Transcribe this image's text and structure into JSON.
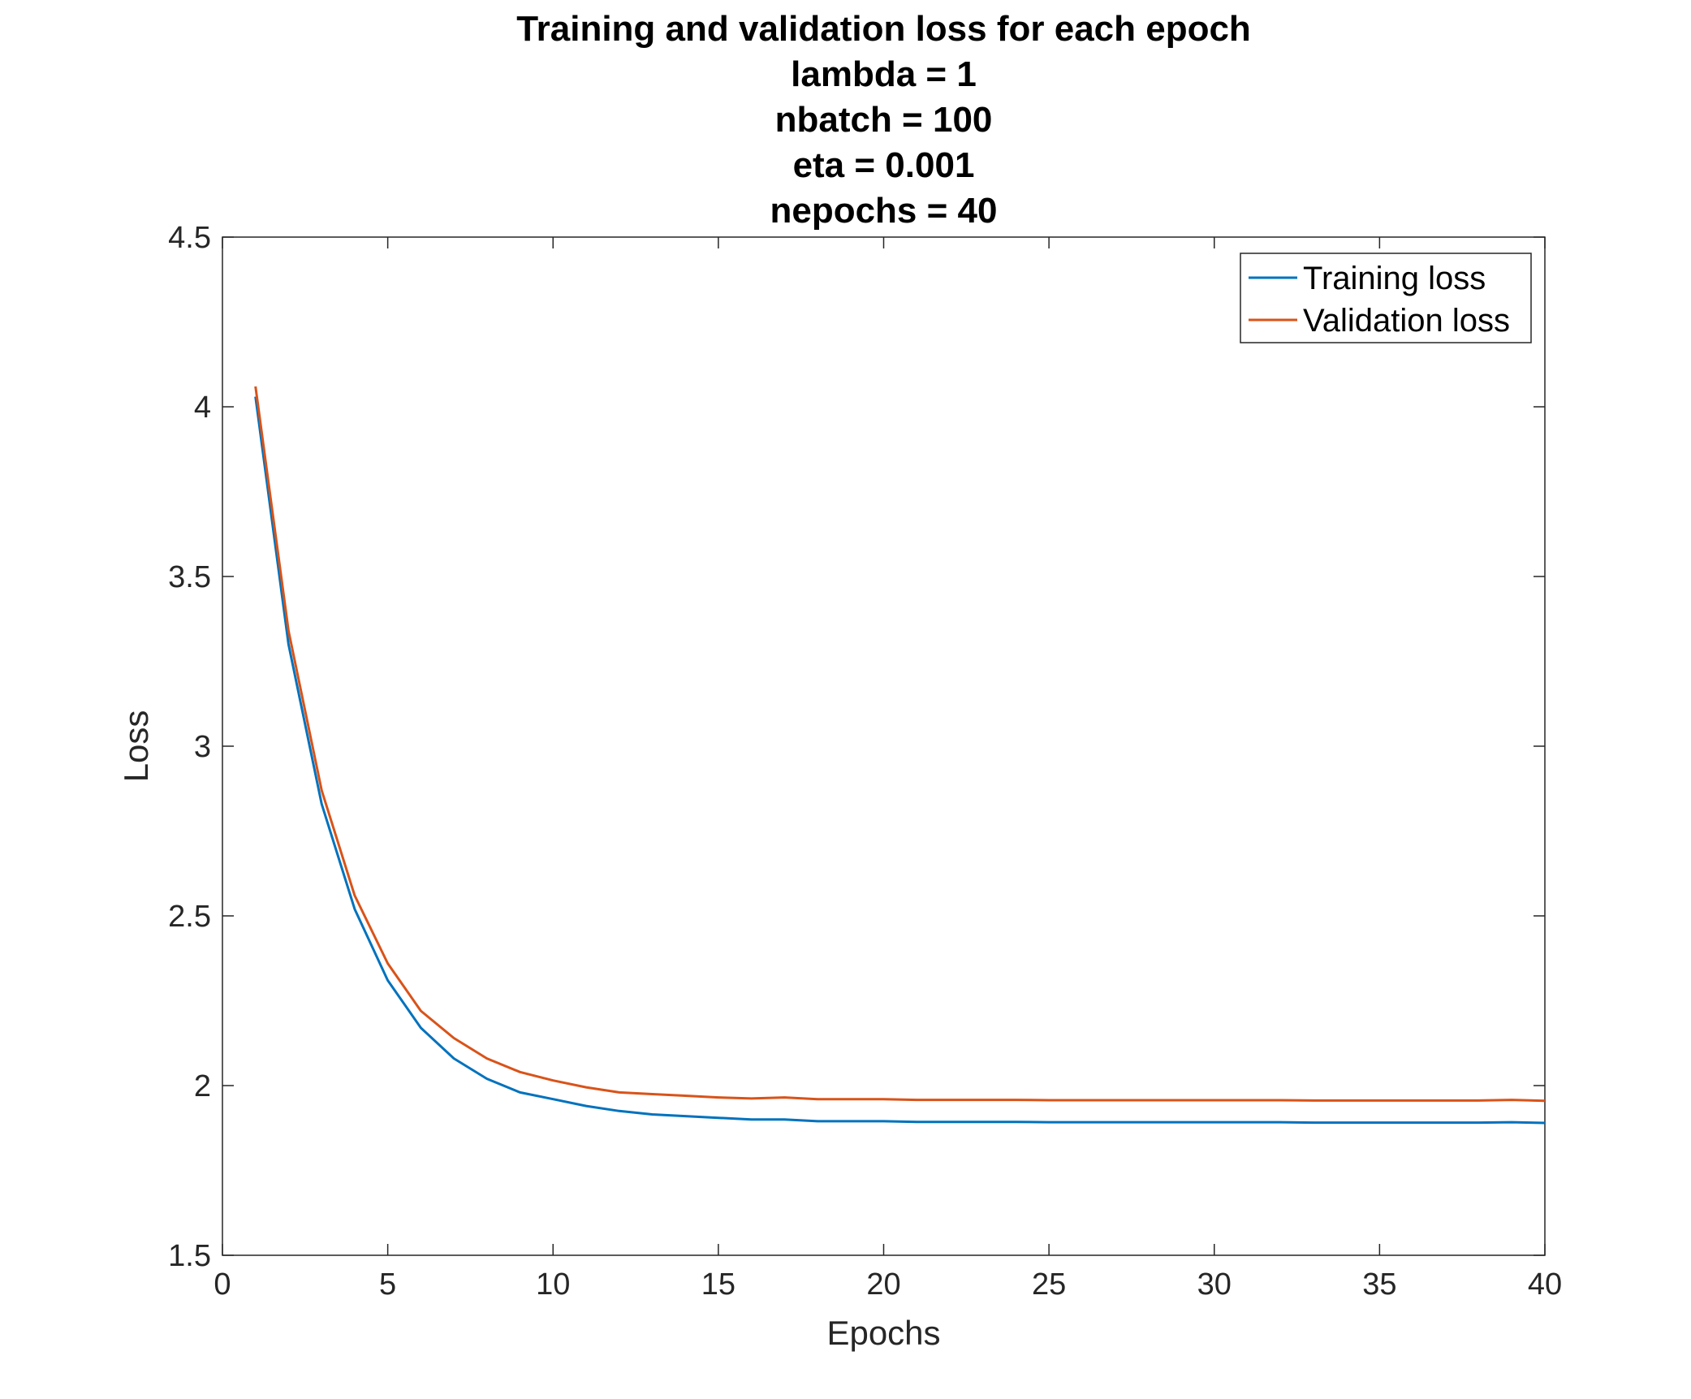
{
  "chart_data": {
    "type": "line",
    "title_lines": [
      "Training and validation loss for each epoch",
      "lambda = 1",
      "nbatch = 100",
      "eta = 0.001",
      "nepochs = 40"
    ],
    "xlabel": "Epochs",
    "ylabel": "Loss",
    "xlim": [
      0,
      40
    ],
    "ylim": [
      1.5,
      4.5
    ],
    "xticks": [
      0,
      5,
      10,
      15,
      20,
      25,
      30,
      35,
      40
    ],
    "yticks": [
      1.5,
      2,
      2.5,
      3,
      3.5,
      4,
      4.5
    ],
    "xtick_labels": [
      "0",
      "5",
      "10",
      "15",
      "20",
      "25",
      "30",
      "35",
      "40"
    ],
    "ytick_labels": [
      "1.5",
      "2",
      "2.5",
      "3",
      "3.5",
      "4",
      "4.5"
    ],
    "grid": false,
    "legend_position": "top-right",
    "x": [
      1,
      2,
      3,
      4,
      5,
      6,
      7,
      8,
      9,
      10,
      11,
      12,
      13,
      14,
      15,
      16,
      17,
      18,
      19,
      20,
      21,
      22,
      23,
      24,
      25,
      26,
      27,
      28,
      29,
      30,
      31,
      32,
      33,
      34,
      35,
      36,
      37,
      38,
      39,
      40
    ],
    "series": [
      {
        "name": "Training loss",
        "color": "#0072BD",
        "values": [
          4.03,
          3.3,
          2.83,
          2.52,
          2.31,
          2.17,
          2.08,
          2.02,
          1.98,
          1.96,
          1.94,
          1.925,
          1.915,
          1.91,
          1.905,
          1.9,
          1.9,
          1.895,
          1.895,
          1.895,
          1.893,
          1.893,
          1.893,
          1.893,
          1.892,
          1.892,
          1.892,
          1.892,
          1.892,
          1.892,
          1.892,
          1.892,
          1.891,
          1.891,
          1.891,
          1.891,
          1.891,
          1.891,
          1.892,
          1.89
        ]
      },
      {
        "name": "Validation loss",
        "color": "#D95319",
        "values": [
          4.06,
          3.34,
          2.87,
          2.56,
          2.36,
          2.22,
          2.14,
          2.08,
          2.04,
          2.015,
          1.995,
          1.98,
          1.975,
          1.97,
          1.965,
          1.962,
          1.965,
          1.96,
          1.96,
          1.96,
          1.958,
          1.958,
          1.958,
          1.958,
          1.957,
          1.957,
          1.957,
          1.957,
          1.957,
          1.957,
          1.957,
          1.957,
          1.956,
          1.956,
          1.956,
          1.956,
          1.956,
          1.956,
          1.958,
          1.955
        ]
      }
    ]
  }
}
